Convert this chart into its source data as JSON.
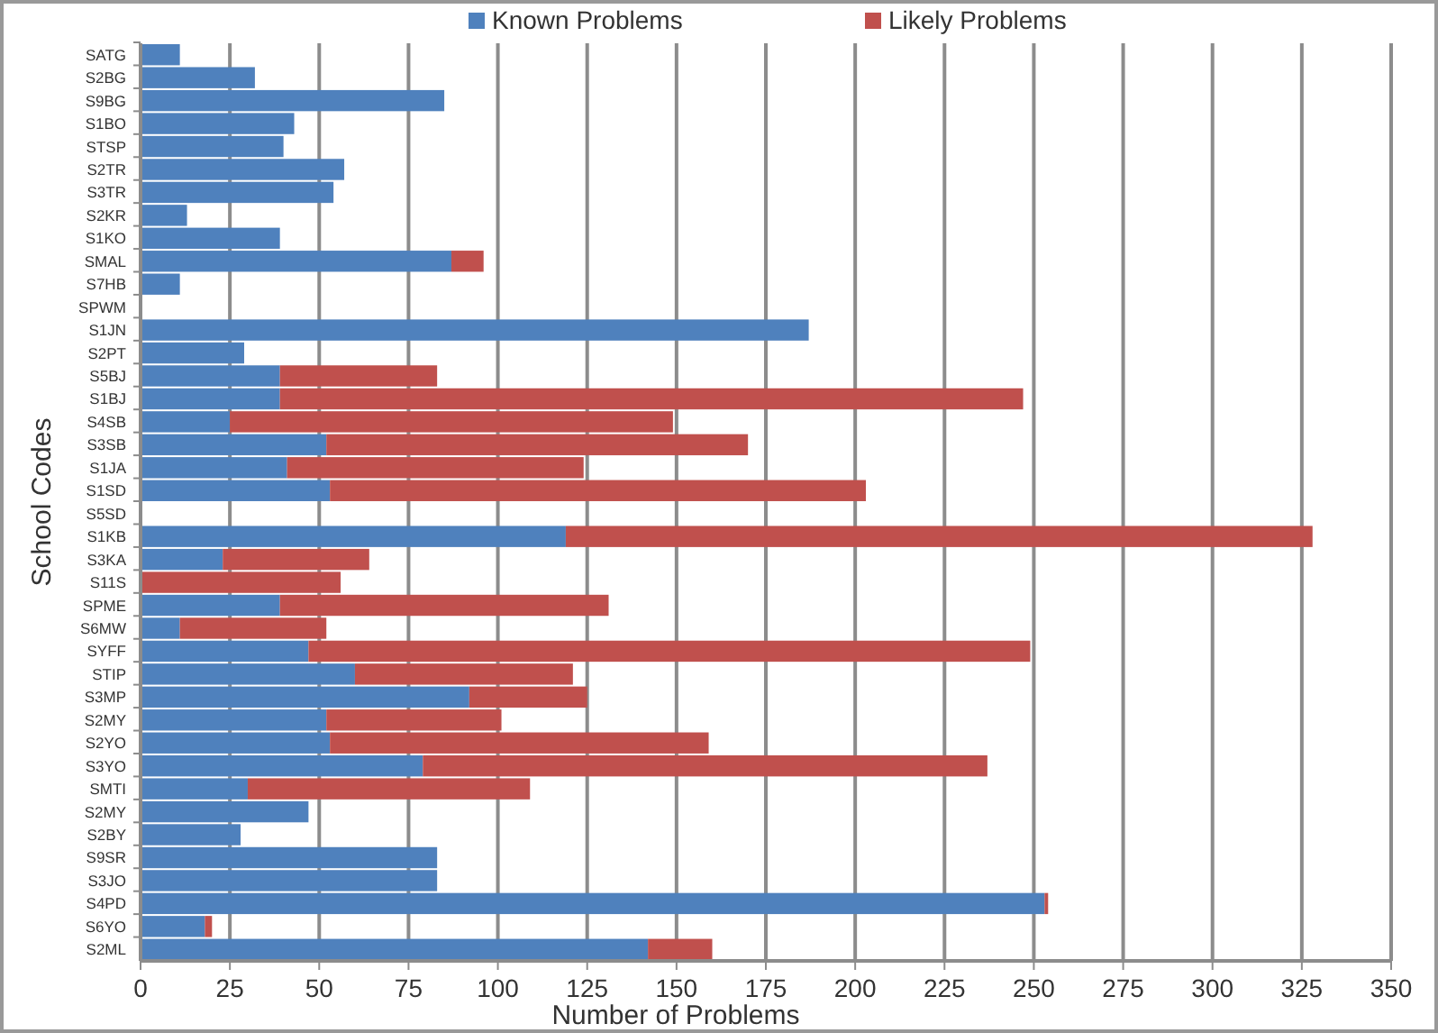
{
  "chart_data": {
    "type": "bar",
    "orientation": "horizontal",
    "stacked": true,
    "xlabel": "Number of Problems",
    "ylabel": "School Codes",
    "categories": [
      "SATG",
      "S2BG",
      "S9BG",
      "S1BO",
      "STSP",
      "S2TR",
      "S3TR",
      "S2KR",
      "S1KO",
      "SMAL",
      "S7HB",
      "SPWM",
      "S1JN",
      "S2PT",
      "S5BJ",
      "S1BJ",
      "S4SB",
      "S3SB",
      "S1JA",
      "S1SD",
      "S5SD",
      "S1KB",
      "S3KA",
      "S11S",
      "SPME",
      "S6MW",
      "SYFF",
      "STIP",
      "S3MP",
      "S2MY",
      "S2YO",
      "S3YO",
      "SMTI",
      "S2MY",
      "S2BY",
      "S9SR",
      "S3JO",
      "S4PD",
      "S6YO",
      "S2ML"
    ],
    "series": [
      {
        "name": "Known Problems",
        "color": "#4f81bd",
        "values": [
          11,
          32,
          85,
          43,
          40,
          57,
          54,
          13,
          39,
          87,
          11,
          0,
          187,
          29,
          39,
          39,
          25,
          52,
          41,
          53,
          0,
          119,
          23,
          0,
          39,
          11,
          47,
          60,
          92,
          52,
          53,
          79,
          30,
          47,
          28,
          83,
          83,
          253,
          18,
          142
        ]
      },
      {
        "name": "Likely Problems",
        "color": "#c0504d",
        "values": [
          0,
          0,
          0,
          0,
          0,
          0,
          0,
          0,
          0,
          9,
          0,
          0,
          0,
          0,
          44,
          208,
          124,
          118,
          83,
          150,
          0,
          209,
          41,
          56,
          92,
          41,
          202,
          61,
          33,
          49,
          106,
          158,
          79,
          0,
          0,
          0,
          0,
          1,
          2,
          18
        ]
      }
    ],
    "xlim": [
      0,
      350
    ],
    "xticks": [
      0,
      25,
      50,
      75,
      100,
      125,
      150,
      175,
      200,
      225,
      250,
      275,
      300,
      325,
      350
    ],
    "grid": "x",
    "legend": "top"
  }
}
